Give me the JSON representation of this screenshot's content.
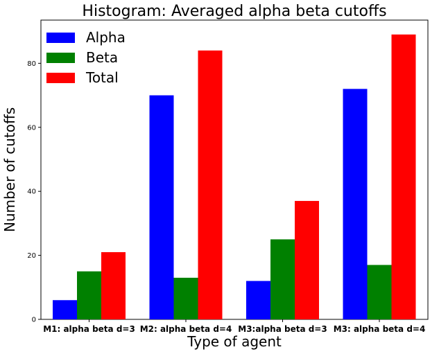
{
  "chart_data": {
    "type": "bar",
    "title": "Histogram: Averaged alpha beta cutoffs",
    "xlabel": "Type of agent",
    "ylabel": "Number of cutoffs",
    "categories": [
      "M1: alpha beta d=3",
      "M2: alpha beta d=4",
      "M3:alpha beta d=3",
      "M3: alpha beta d=4"
    ],
    "series": [
      {
        "name": "Alpha",
        "color": "#0000ff",
        "values": [
          6,
          70,
          12,
          72
        ]
      },
      {
        "name": "Beta",
        "color": "#008000",
        "values": [
          15,
          13,
          25,
          17
        ]
      },
      {
        "name": "Total",
        "color": "#ff0000",
        "values": [
          21,
          84,
          37,
          89
        ]
      }
    ],
    "ylim": [
      0,
      93.5
    ],
    "yticks": [
      0,
      20,
      40,
      60,
      80
    ],
    "grid": false,
    "legend_position": "top-left"
  }
}
